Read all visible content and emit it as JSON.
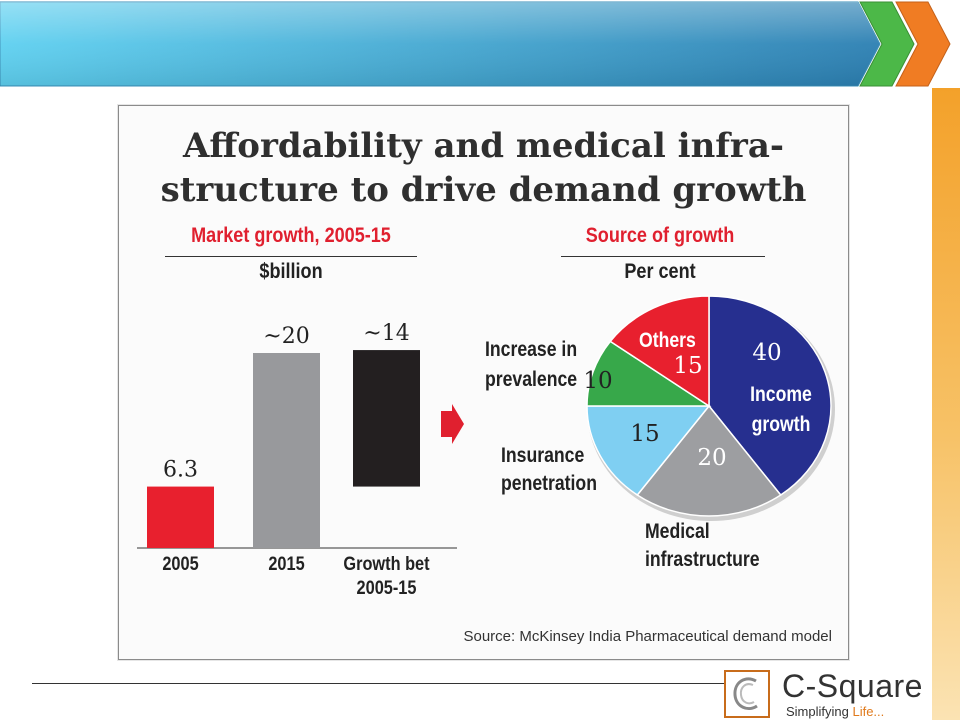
{
  "slide": {
    "colors": {
      "banner_start": "#5ed0f0",
      "banner_end": "#2b7fb2",
      "chevron_green": "#4cb848",
      "chevron_orange": "#f07c23",
      "side_strip": "#f3a12a"
    }
  },
  "chart": {
    "headline_line1": "Affordability and medical infra-",
    "headline_line2": "structure to drive demand growth",
    "source": "Source: McKinsey India Pharmaceutical demand model",
    "arrow_color": "#e0202f"
  },
  "chart_data": [
    {
      "type": "bar",
      "title": "Market growth, 2005-15",
      "ylabel": "$billion",
      "categories": [
        "2005",
        "2015",
        "Growth bet 2005-15"
      ],
      "category_lines": [
        [
          "2005"
        ],
        [
          "2015"
        ],
        [
          "Growth bet",
          "2005-15"
        ]
      ],
      "values": [
        6.3,
        20,
        14
      ],
      "value_labels": [
        "6.3",
        "~20",
        "~14"
      ],
      "floating_base": [
        0,
        0,
        6.3
      ],
      "colors": [
        "#e8202e",
        "#98999c",
        "#231f20"
      ],
      "ylim": [
        0,
        20
      ]
    },
    {
      "type": "pie",
      "title": "Source of growth",
      "unit": "Per cent",
      "labels": [
        "Income growth",
        "Medical infrastructure",
        "Insurance penetration",
        "Increase in prevalence",
        "Others"
      ],
      "values": [
        40,
        20,
        15,
        10,
        15
      ],
      "colors": [
        "#262f8f",
        "#9d9ea1",
        "#7fcff2",
        "#37a84a",
        "#e8202e"
      ]
    }
  ],
  "pie_labels": {
    "income": [
      "Income",
      "growth"
    ],
    "others": "Others",
    "medical": [
      "Medical",
      "infrastructure"
    ],
    "insurance": [
      "Insurance",
      "penetration"
    ],
    "prevalence": [
      "Increase in",
      "prevalence"
    ]
  },
  "logo": {
    "name": "C-Square",
    "tagline_start": "Simplifying ",
    "tagline_end": "Life..."
  }
}
